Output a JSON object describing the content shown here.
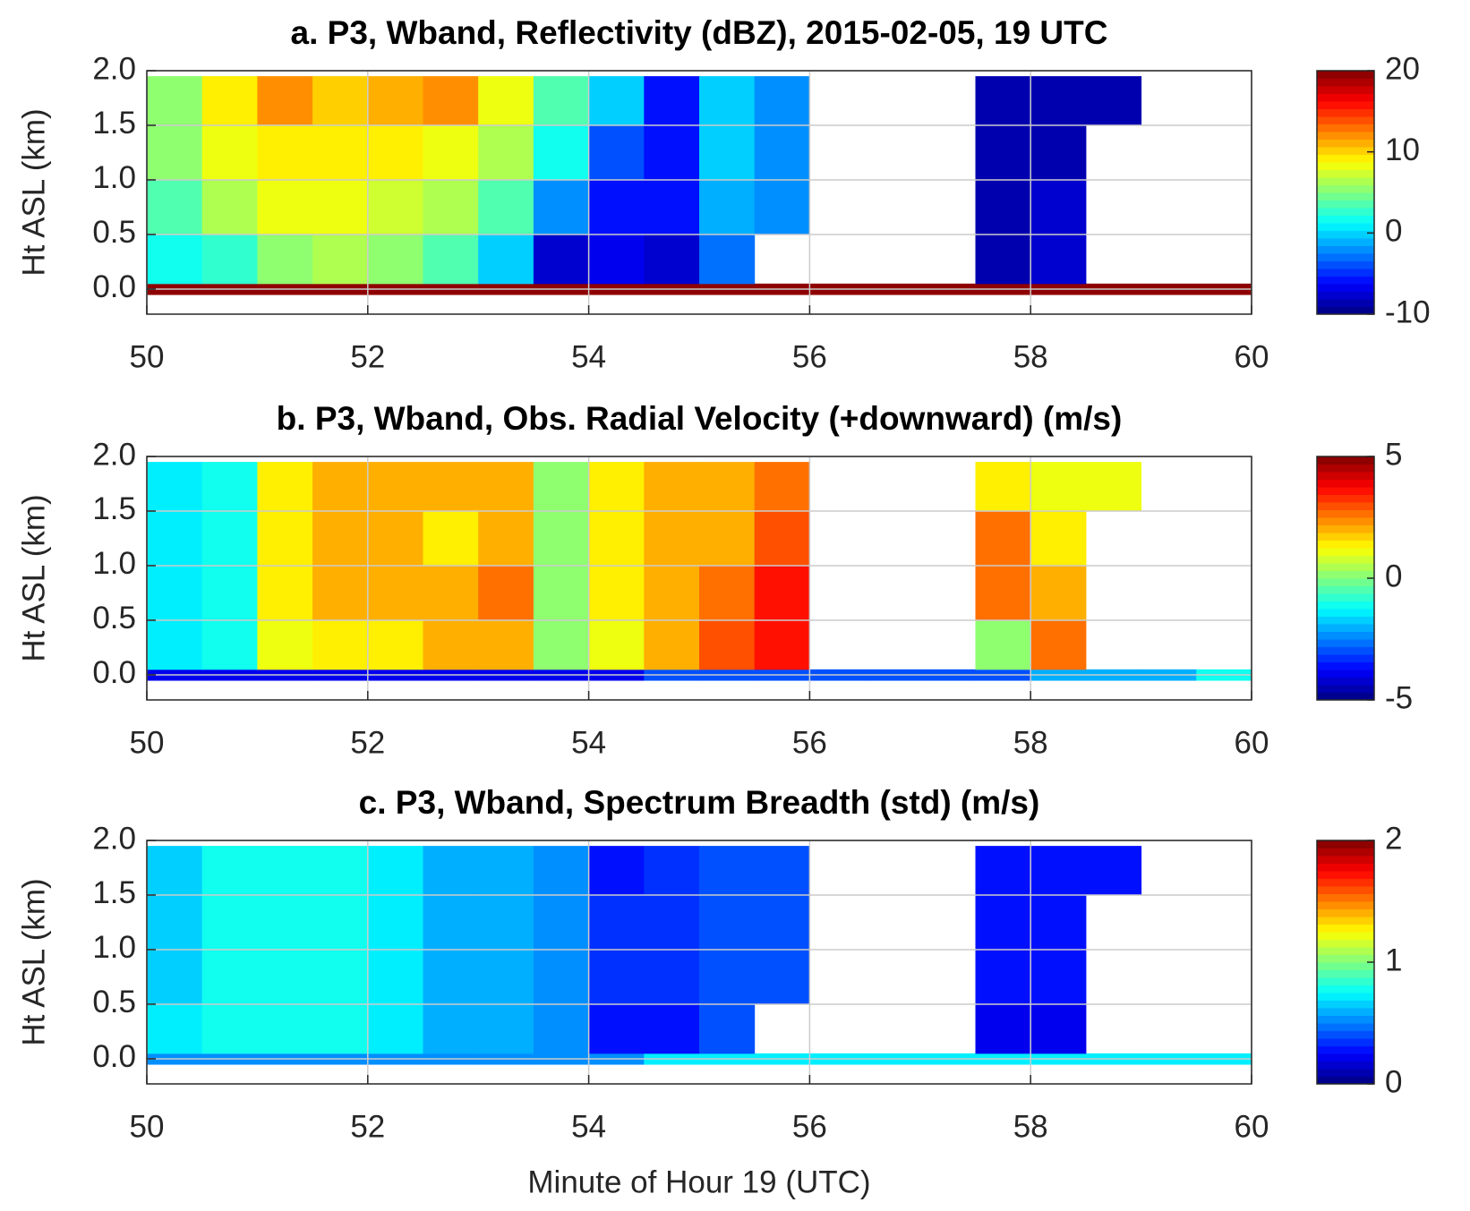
{
  "chart_data": [
    {
      "type": "heatmap",
      "title": "a. P3, Wband, Reflectivity (dBZ), 2015-02-05, 19 UTC",
      "ylabel": "Ht ASL (km)",
      "colormap": "jet",
      "grid": true,
      "x_edges": [
        50,
        50.5,
        51,
        51.5,
        52,
        52.5,
        53,
        53.5,
        54,
        54.5,
        55,
        55.5,
        56,
        56.5,
        57,
        57.5,
        58,
        58.5,
        59,
        59.5,
        60
      ],
      "y_edges": [
        -0.05,
        0.05,
        0.5,
        1.0,
        1.5,
        1.95
      ],
      "values": [
        [
          20,
          20,
          20,
          20,
          20,
          20,
          20,
          20,
          20,
          20,
          20,
          20,
          20,
          20,
          20,
          20,
          20,
          20,
          20,
          20
        ],
        [
          2,
          3,
          5,
          6,
          5,
          4,
          0,
          -8,
          -7,
          -8,
          -3,
          null,
          null,
          null,
          null,
          -9,
          -8,
          null,
          null,
          null
        ],
        [
          4,
          6,
          8,
          8,
          7,
          6,
          4,
          -2,
          -6,
          -6,
          -1,
          -2,
          null,
          null,
          null,
          -9,
          -8,
          null,
          null,
          null
        ],
        [
          5,
          8,
          9,
          9,
          9,
          8,
          6,
          2,
          -4,
          -6,
          0,
          -2,
          null,
          null,
          null,
          -9,
          -9,
          null,
          null,
          null
        ],
        [
          5,
          9,
          12,
          10,
          11,
          12,
          8,
          4,
          0,
          -6,
          0,
          -2,
          null,
          null,
          null,
          -9,
          -9,
          -9,
          null,
          null
        ]
      ],
      "xlim": [
        50,
        60
      ],
      "ylim": [
        -0.23,
        2.0
      ],
      "xticks": [
        50,
        52,
        54,
        56,
        58,
        60
      ],
      "yticks": [
        {
          "value": 0,
          "label": "0.0"
        },
        0.5,
        {
          "value": 1,
          "label": "1.0"
        },
        1.5,
        {
          "value": 2,
          "label": "2.0"
        }
      ],
      "clim": [
        -10,
        20
      ],
      "cticks": [
        -10,
        0,
        10,
        20
      ]
    },
    {
      "type": "heatmap",
      "title": "b. P3, Wband, Obs. Radial Velocity (+downward) (m/s)",
      "ylabel": "Ht ASL (km)",
      "colormap": "jet",
      "grid": true,
      "x_edges": [
        50,
        50.5,
        51,
        51.5,
        52,
        52.5,
        53,
        53.5,
        54,
        54.5,
        55,
        55.5,
        56,
        56.5,
        57,
        57.5,
        58,
        58.5,
        59,
        59.5,
        60
      ],
      "y_edges": [
        -0.05,
        0.05,
        0.5,
        1.0,
        1.5,
        1.95
      ],
      "values": [
        [
          -4,
          -4,
          -4,
          -4,
          -4,
          -4,
          -4,
          -4,
          -4,
          -3,
          -3,
          -3,
          -3,
          -3,
          -3,
          -3,
          -2,
          -2,
          -2,
          -1
        ],
        [
          -1.5,
          -1,
          1,
          1.5,
          1.5,
          2,
          2,
          0,
          1,
          2,
          3,
          3.5,
          null,
          null,
          null,
          0,
          2.5,
          null,
          null,
          null
        ],
        [
          -1.5,
          -1,
          1.5,
          2,
          2,
          2,
          2.5,
          0,
          1.5,
          2,
          2.5,
          3.5,
          null,
          null,
          null,
          2.5,
          2,
          null,
          null,
          null
        ],
        [
          -1.5,
          -1,
          1.5,
          2,
          2,
          1.5,
          2,
          0,
          1.5,
          2,
          2,
          3,
          null,
          null,
          null,
          2.5,
          1.5,
          null,
          null,
          null
        ],
        [
          -1.5,
          -1,
          1.5,
          2,
          2,
          2,
          2,
          0,
          1.5,
          2,
          2,
          2.5,
          null,
          null,
          null,
          1.5,
          1,
          1,
          null,
          null
        ]
      ],
      "xlim": [
        50,
        60
      ],
      "ylim": [
        -0.23,
        2.0
      ],
      "xticks": [
        50,
        52,
        54,
        56,
        58,
        60
      ],
      "yticks": [
        {
          "value": 0,
          "label": "0.0"
        },
        0.5,
        {
          "value": 1,
          "label": "1.0"
        },
        1.5,
        {
          "value": 2,
          "label": "2.0"
        }
      ],
      "clim": [
        -5,
        5
      ],
      "cticks": [
        -5,
        0,
        5
      ]
    },
    {
      "type": "heatmap",
      "title": "c. P3, Wband, Spectrum Breadth (std) (m/s)",
      "ylabel": "Ht ASL (km)",
      "xlabel": "Minute of Hour 19 (UTC)",
      "colormap": "jet",
      "grid": true,
      "x_edges": [
        50,
        50.5,
        51,
        51.5,
        52,
        52.5,
        53,
        53.5,
        54,
        54.5,
        55,
        55.5,
        56,
        56.5,
        57,
        57.5,
        58,
        58.5,
        59,
        59.5,
        60
      ],
      "y_edges": [
        -0.05,
        0.05,
        0.5,
        1.0,
        1.5,
        1.95
      ],
      "values": [
        [
          0.5,
          0.5,
          0.5,
          0.5,
          0.5,
          0.5,
          0.5,
          0.5,
          0.5,
          0.7,
          0.7,
          0.7,
          0.7,
          0.7,
          0.7,
          0.7,
          0.7,
          0.7,
          0.7,
          0.7
        ],
        [
          0.7,
          0.8,
          0.75,
          0.75,
          0.7,
          0.6,
          0.6,
          0.5,
          0.3,
          0.3,
          0.4,
          null,
          null,
          null,
          null,
          0.2,
          0.2,
          null,
          null,
          null
        ],
        [
          0.65,
          0.8,
          0.8,
          0.75,
          0.7,
          0.6,
          0.6,
          0.55,
          0.35,
          0.35,
          0.4,
          0.4,
          null,
          null,
          null,
          0.3,
          0.3,
          null,
          null,
          null
        ],
        [
          0.65,
          0.8,
          0.8,
          0.75,
          0.7,
          0.6,
          0.6,
          0.55,
          0.35,
          0.35,
          0.4,
          0.4,
          null,
          null,
          null,
          0.3,
          0.3,
          null,
          null,
          null
        ],
        [
          0.65,
          0.8,
          0.8,
          0.75,
          0.7,
          0.6,
          0.6,
          0.55,
          0.3,
          0.35,
          0.4,
          0.4,
          null,
          null,
          null,
          0.3,
          0.3,
          0.3,
          null,
          null
        ]
      ],
      "xlim": [
        50,
        60
      ],
      "ylim": [
        -0.23,
        2.0
      ],
      "xticks": [
        50,
        52,
        54,
        56,
        58,
        60
      ],
      "yticks": [
        {
          "value": 0,
          "label": "0.0"
        },
        0.5,
        {
          "value": 1,
          "label": "1.0"
        },
        1.5,
        {
          "value": 2,
          "label": "2.0"
        }
      ],
      "clim": [
        0,
        2
      ],
      "cticks": [
        0,
        1,
        2
      ]
    }
  ]
}
